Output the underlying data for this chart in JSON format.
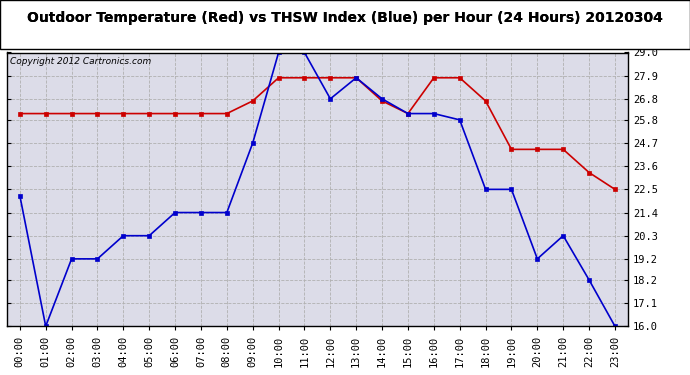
{
  "title": "Outdoor Temperature (Red) vs THSW Index (Blue) per Hour (24 Hours) 20120304",
  "copyright": "Copyright 2012 Cartronics.com",
  "hours": [
    "00:00",
    "01:00",
    "02:00",
    "03:00",
    "04:00",
    "05:00",
    "06:00",
    "07:00",
    "08:00",
    "09:00",
    "10:00",
    "11:00",
    "12:00",
    "13:00",
    "14:00",
    "15:00",
    "16:00",
    "17:00",
    "18:00",
    "19:00",
    "20:00",
    "21:00",
    "22:00",
    "23:00"
  ],
  "red_data": [
    26.1,
    26.1,
    26.1,
    26.1,
    26.1,
    26.1,
    26.1,
    26.1,
    26.1,
    26.7,
    27.8,
    27.8,
    27.8,
    27.8,
    26.7,
    26.1,
    27.8,
    27.8,
    26.7,
    24.4,
    24.4,
    24.4,
    23.3,
    22.5
  ],
  "blue_data": [
    22.2,
    16.0,
    19.2,
    19.2,
    20.3,
    20.3,
    21.4,
    21.4,
    21.4,
    24.7,
    29.0,
    29.0,
    26.8,
    27.8,
    26.8,
    26.1,
    26.1,
    25.8,
    22.5,
    22.5,
    19.2,
    20.3,
    18.2,
    16.0
  ],
  "ylim": [
    16.0,
    29.0
  ],
  "yticks": [
    16.0,
    17.1,
    18.2,
    19.2,
    20.3,
    21.4,
    22.5,
    23.6,
    24.7,
    25.8,
    26.8,
    27.9,
    29.0
  ],
  "red_color": "#cc0000",
  "blue_color": "#0000cc",
  "bg_color": "#ffffff",
  "plot_bg": "#dcdce8",
  "grid_color": "#b0b0b0",
  "title_fontsize": 10,
  "tick_fontsize": 7.5,
  "copyright_fontsize": 6.5
}
